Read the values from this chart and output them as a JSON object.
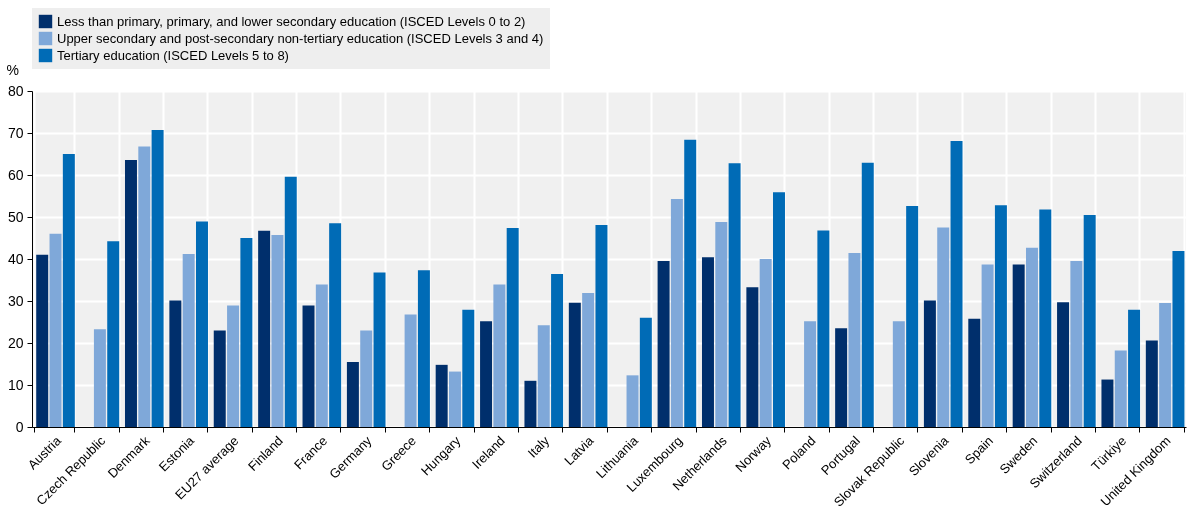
{
  "chart_data": {
    "type": "bar",
    "ylabel": "%",
    "categories": [
      "Austria",
      "Czech Republic",
      "Denmark",
      "Estonia",
      "EU27 average",
      "Finland",
      "France",
      "Germany",
      "Greece",
      "Hungary",
      "Ireland",
      "Italy",
      "Latvia",
      "Lithuania",
      "Luxembourg",
      "Netherlands",
      "Norway",
      "Poland",
      "Portugal",
      "Slovak Republic",
      "Slovenia",
      "Spain",
      "Sweden",
      "Switzerland",
      "Türkiye",
      "United Kingdom"
    ],
    "series": [
      {
        "name": "Less than primary, primary, and lower secondary education (ISCED Levels 0 to 2)",
        "color": "#002f6c",
        "values": [
          41,
          null,
          63.6,
          30.1,
          23,
          46.7,
          28.9,
          15.5,
          null,
          14.8,
          25.2,
          11,
          29.6,
          null,
          39.5,
          40.4,
          33.3,
          null,
          23.5,
          null,
          30.1,
          25.8,
          38.7,
          29.7,
          11.3,
          20.6
        ]
      },
      {
        "name": "Upper secondary and post-secondary non-tertiary education (ISCED Levels 3 and 4)",
        "color": "#7fa8d9",
        "values": [
          46,
          23.3,
          66.8,
          41.2,
          28.9,
          45.7,
          33.9,
          23,
          26.8,
          13.2,
          33.9,
          24.2,
          31.9,
          12.3,
          54.3,
          48.8,
          40,
          25.2,
          41.4,
          25.2,
          47.5,
          38.7,
          42.7,
          39.5,
          18.2,
          29.5
        ]
      },
      {
        "name": "Tertiary education (ISCED Levels 5 to 8)",
        "color": "#006bb6",
        "values": [
          65,
          44.2,
          70.7,
          48.9,
          45,
          59.6,
          48.5,
          36.8,
          37.3,
          27.9,
          47.4,
          36.4,
          48.1,
          26,
          68.4,
          62.8,
          55.9,
          46.8,
          62.9,
          52.6,
          68.1,
          52.8,
          51.8,
          50.5,
          27.9,
          41.9
        ]
      }
    ],
    "ylim": [
      0,
      80
    ],
    "yticks": [
      0,
      10,
      20,
      30,
      40,
      50,
      60,
      70,
      80
    ],
    "grid": true,
    "legend": "top"
  }
}
